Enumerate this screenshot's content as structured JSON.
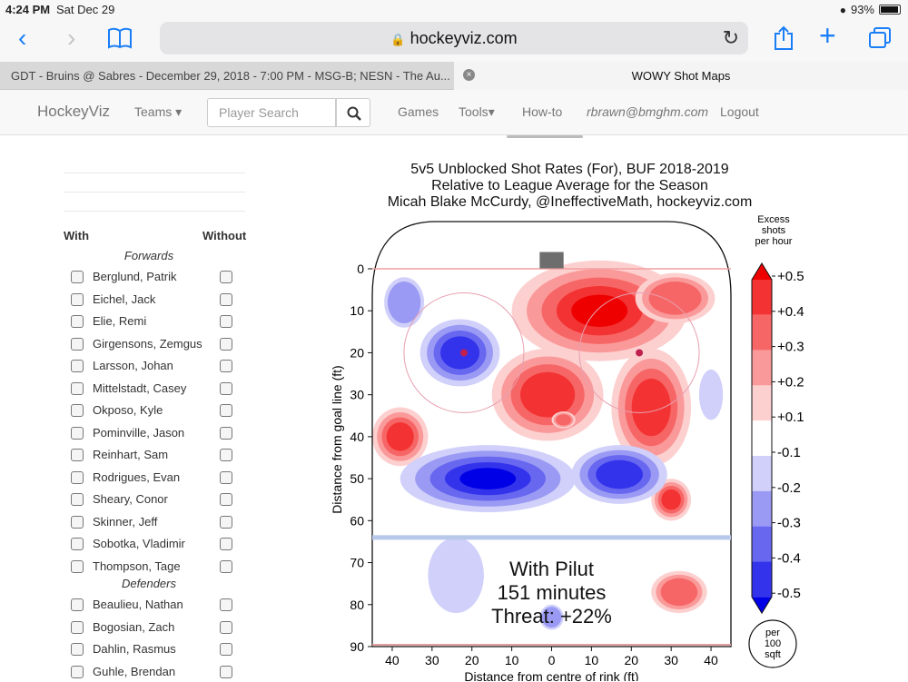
{
  "status": {
    "time": "4:24 PM",
    "date": "Sat Dec 29",
    "battery": "93%"
  },
  "browser": {
    "url": "hockeyviz.com",
    "tabs": [
      {
        "label": "GDT - Bruins @ Sabres - December 29, 2018 - 7:00 PM - MSG-B; NESN - The Au..."
      },
      {
        "label": "WOWY Shot Maps"
      }
    ]
  },
  "site_nav": {
    "brand": "HockeyViz",
    "teams": "Teams",
    "search_placeholder": "Player Search",
    "games": "Games",
    "tools": "Tools",
    "howto": "How-to",
    "email": "rbrawn@bmghm.com",
    "logout": "Logout"
  },
  "wowy": {
    "with_label": "With",
    "without_label": "Without",
    "forwards_label": "Forwards",
    "defenders_label": "Defenders",
    "forwards": [
      "Berglund, Patrik",
      "Eichel, Jack",
      "Elie, Remi",
      "Girgensons, Zemgus",
      "Larsson, Johan",
      "Mittelstadt, Casey",
      "Okposo, Kyle",
      "Pominville, Jason",
      "Reinhart, Sam",
      "Rodrigues, Evan",
      "Sheary, Conor",
      "Skinner, Jeff",
      "Sobotka, Vladimir",
      "Thompson, Tage"
    ],
    "defenders": [
      "Beaulieu, Nathan",
      "Bogosian, Zach",
      "Dahlin, Rasmus",
      "Guhle, Brendan"
    ]
  },
  "chart": {
    "title_lines": [
      "5v5 Unblocked Shot Rates (For), BUF 2018-2019",
      "Relative to League Average for the Season",
      "Micah Blake McCurdy, @IneffectiveMath, hockeyviz.com"
    ],
    "ylabel": "Distance from goal line (ft)",
    "xlabel": "Distance from centre of rink (ft)",
    "overlay": [
      "With Pilut",
      "151 minutes",
      "Threat: +22%"
    ],
    "legend_title": [
      "Excess",
      "shots",
      "per hour"
    ],
    "legend_unit": [
      "per",
      "100",
      "sqft"
    ]
  },
  "chart_data": {
    "type": "heatmap",
    "title": "5v5 Unblocked Shot Rates (For), BUF 2018-2019",
    "subtitle": "Relative to League Average for the Season",
    "xlabel": "Distance from centre of rink (ft)",
    "ylabel": "Distance from goal line (ft)",
    "x_ticks": [
      40,
      30,
      20,
      10,
      0,
      10,
      20,
      30,
      40
    ],
    "y_ticks": [
      0,
      10,
      20,
      30,
      40,
      50,
      60,
      70,
      80,
      90
    ],
    "colorbar_ticks": [
      "+0.5",
      "+0.4",
      "+0.3",
      "+0.2",
      "+0.1",
      "-0.1",
      "-0.2",
      "-0.3",
      "-0.4",
      "-0.5"
    ],
    "colorbar_colors": [
      "#ee0000",
      "#f33333",
      "#f76666",
      "#fa9999",
      "#fdd0d0",
      "#ffffff",
      "#d0d0fb",
      "#9a9af4",
      "#6767f0",
      "#3333ec",
      "#0000e6"
    ],
    "blobs": [
      {
        "cx": 12,
        "cy": 10,
        "rx": 22,
        "ry": 12,
        "level": 5,
        "sign": 1
      },
      {
        "cx": -1,
        "cy": 30,
        "rx": 14,
        "ry": 11,
        "level": 4,
        "sign": 1
      },
      {
        "cx": 25,
        "cy": 33,
        "rx": 10,
        "ry": 14,
        "level": 4,
        "sign": 1
      },
      {
        "cx": 31,
        "cy": 7,
        "rx": 10,
        "ry": 6,
        "level": 3,
        "sign": 1
      },
      {
        "cx": -38,
        "cy": 40,
        "rx": 7,
        "ry": 7,
        "level": 4,
        "sign": 1
      },
      {
        "cx": 3,
        "cy": 36,
        "rx": 3,
        "ry": 2,
        "level": 3,
        "sign": 1
      },
      {
        "cx": 30,
        "cy": 55,
        "rx": 5,
        "ry": 5,
        "level": 4,
        "sign": 1
      },
      {
        "cx": 32,
        "cy": 77,
        "rx": 7,
        "ry": 5,
        "level": 3,
        "sign": 1
      },
      {
        "cx": -23,
        "cy": 20,
        "rx": 10,
        "ry": 8,
        "level": 4,
        "sign": -1
      },
      {
        "cx": -37,
        "cy": 8,
        "rx": 5,
        "ry": 6,
        "level": 2,
        "sign": -1
      },
      {
        "cx": -16,
        "cy": 50,
        "rx": 22,
        "ry": 8,
        "level": 5,
        "sign": -1
      },
      {
        "cx": 17,
        "cy": 49,
        "rx": 12,
        "ry": 7,
        "level": 4,
        "sign": -1
      },
      {
        "cx": -24,
        "cy": 73,
        "rx": 7,
        "ry": 9,
        "level": 1,
        "sign": -1
      },
      {
        "cx": 0,
        "cy": 83,
        "rx": 3,
        "ry": 3,
        "level": 2,
        "sign": -1
      },
      {
        "cx": 40,
        "cy": 30,
        "rx": 3,
        "ry": 6,
        "level": 1,
        "sign": -1
      }
    ]
  }
}
